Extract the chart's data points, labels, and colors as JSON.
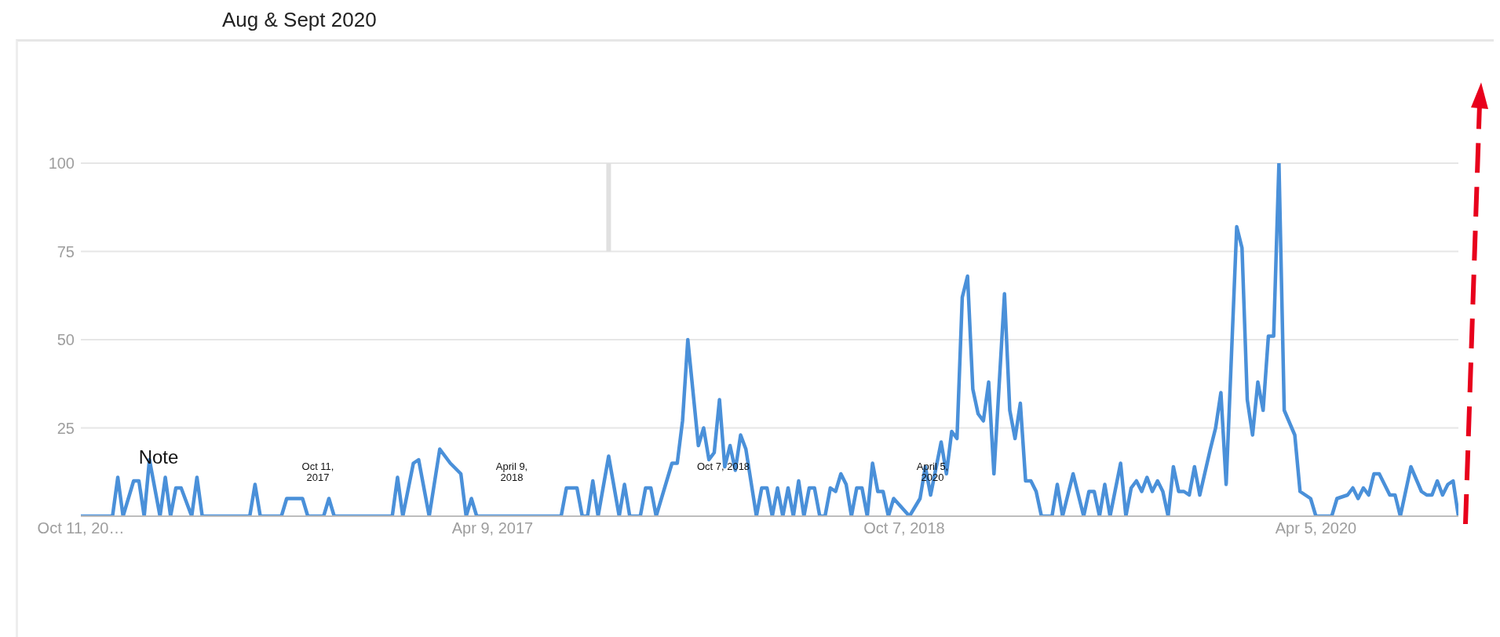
{
  "chart_data": {
    "type": "line",
    "title": "Aug & Sept 2020",
    "x": [
      "2015-10-11",
      "2015-11-22",
      "2015-11-29",
      "2015-12-06",
      "2015-12-20",
      "2015-12-27",
      "2016-01-03",
      "2016-01-10",
      "2016-01-24",
      "2016-01-31",
      "2016-02-07",
      "2016-02-14",
      "2016-02-21",
      "2016-03-06",
      "2016-03-13",
      "2016-03-20",
      "2016-05-22",
      "2016-05-29",
      "2016-06-05",
      "2016-07-03",
      "2016-07-10",
      "2016-07-31",
      "2016-08-07",
      "2016-08-28",
      "2016-09-04",
      "2016-09-11",
      "2016-11-27",
      "2016-12-04",
      "2016-12-11",
      "2016-12-25",
      "2017-01-01",
      "2017-01-15",
      "2017-01-29",
      "2017-02-12",
      "2017-02-26",
      "2017-03-05",
      "2017-03-12",
      "2017-03-19",
      "2017-07-09",
      "2017-07-16",
      "2017-07-30",
      "2017-08-06",
      "2017-08-13",
      "2017-08-20",
      "2017-08-27",
      "2017-09-10",
      "2017-09-24",
      "2017-10-01",
      "2017-10-08",
      "2017-10-22",
      "2017-10-29",
      "2017-11-05",
      "2017-11-12",
      "2017-12-03",
      "2017-12-10",
      "2017-12-17",
      "2017-12-24",
      "2017-12-31",
      "2018-01-07",
      "2018-01-14",
      "2018-01-21",
      "2018-01-28",
      "2018-02-04",
      "2018-02-11",
      "2018-02-18",
      "2018-02-25",
      "2018-03-04",
      "2018-03-11",
      "2018-03-25",
      "2018-04-01",
      "2018-04-08",
      "2018-04-15",
      "2018-04-22",
      "2018-04-29",
      "2018-05-06",
      "2018-05-13",
      "2018-05-20",
      "2018-05-27",
      "2018-06-03",
      "2018-06-10",
      "2018-06-17",
      "2018-06-24",
      "2018-07-01",
      "2018-07-08",
      "2018-07-15",
      "2018-07-22",
      "2018-07-29",
      "2018-08-05",
      "2018-08-12",
      "2018-08-19",
      "2018-08-26",
      "2018-09-02",
      "2018-09-09",
      "2018-09-16",
      "2018-09-23",
      "2018-10-14",
      "2018-10-28",
      "2018-11-04",
      "2018-11-11",
      "2018-11-25",
      "2018-12-02",
      "2018-12-09",
      "2018-12-16",
      "2018-12-23",
      "2018-12-30",
      "2019-01-06",
      "2019-01-13",
      "2019-01-20",
      "2019-01-27",
      "2019-02-03",
      "2019-02-17",
      "2019-02-24",
      "2019-03-03",
      "2019-03-10",
      "2019-03-17",
      "2019-03-24",
      "2019-03-31",
      "2019-04-07",
      "2019-04-21",
      "2019-04-28",
      "2019-05-05",
      "2019-05-19",
      "2019-06-02",
      "2019-06-09",
      "2019-06-16",
      "2019-06-23",
      "2019-06-30",
      "2019-07-07",
      "2019-07-21",
      "2019-07-28",
      "2019-08-04",
      "2019-08-11",
      "2019-08-18",
      "2019-08-25",
      "2019-09-01",
      "2019-09-08",
      "2019-09-15",
      "2019-09-22",
      "2019-09-29",
      "2019-10-06",
      "2019-10-13",
      "2019-10-20",
      "2019-10-27",
      "2019-11-03",
      "2019-11-17",
      "2019-11-24",
      "2019-12-01",
      "2019-12-08",
      "2019-12-22",
      "2019-12-29",
      "2020-01-05",
      "2020-01-12",
      "2020-01-19",
      "2020-01-26",
      "2020-02-02",
      "2020-02-09",
      "2020-02-16",
      "2020-02-23",
      "2020-03-08",
      "2020-03-15",
      "2020-03-29",
      "2020-04-05",
      "2020-04-26",
      "2020-05-03",
      "2020-05-17",
      "2020-05-24",
      "2020-05-31",
      "2020-06-07",
      "2020-06-14",
      "2020-06-21",
      "2020-06-28",
      "2020-07-12",
      "2020-07-19",
      "2020-07-26",
      "2020-08-09",
      "2020-08-23",
      "2020-08-30",
      "2020-09-06",
      "2020-09-13",
      "2020-09-20",
      "2020-09-27",
      "2020-10-04",
      "2020-10-11"
    ],
    "series": [
      {
        "color": "#4a90d9",
        "values": [
          0,
          0,
          11,
          0,
          10,
          10,
          0,
          16,
          0,
          11,
          0,
          8,
          8,
          0,
          11,
          0,
          0,
          9,
          0,
          0,
          5,
          5,
          0,
          0,
          5,
          0,
          0,
          11,
          0,
          15,
          16,
          0,
          19,
          15,
          12,
          0,
          5,
          0,
          0,
          8,
          8,
          0,
          0,
          10,
          0,
          17,
          0,
          9,
          0,
          0,
          8,
          8,
          0,
          15,
          15,
          27,
          50,
          35,
          20,
          25,
          16,
          18,
          33,
          14,
          20,
          13,
          23,
          19,
          0,
          8,
          8,
          0,
          8,
          0,
          8,
          0,
          10,
          0,
          8,
          8,
          0,
          0,
          8,
          7,
          12,
          9,
          0,
          8,
          8,
          0,
          15,
          7,
          7,
          0,
          5,
          0,
          5,
          14,
          6,
          21,
          12,
          24,
          22,
          62,
          68,
          36,
          29,
          27,
          38,
          12,
          63,
          30,
          22,
          32,
          10,
          10,
          7,
          0,
          0,
          9,
          0,
          12,
          0,
          7,
          7,
          0,
          9,
          0,
          15,
          0,
          8,
          10,
          7,
          11,
          7,
          10,
          7,
          0,
          14,
          7,
          7,
          6,
          14,
          6,
          19,
          25,
          35,
          9,
          82,
          76,
          33,
          23,
          38,
          30,
          51,
          51,
          100,
          30,
          23,
          7,
          5,
          0,
          0,
          5,
          6,
          8,
          5,
          8,
          6,
          12,
          12,
          6,
          6,
          0,
          14,
          7,
          6,
          6,
          10,
          6,
          9,
          10,
          0
        ]
      }
    ],
    "xlim": [
      "2015-10-11",
      "2020-10-11"
    ],
    "xticks": [
      {
        "value": "2015-10-11",
        "label": "Oct 11, 20…"
      },
      {
        "value": "2017-04-09",
        "label": "Apr 9, 2017"
      },
      {
        "value": "2018-10-07",
        "label": "Oct 7, 2018"
      },
      {
        "value": "2020-04-05",
        "label": "Apr 5, 2020"
      }
    ],
    "ylim": [
      0,
      100
    ],
    "yticks": [
      25,
      50,
      75,
      100
    ],
    "grid": "y",
    "line_style": "solid",
    "ref_lines": [
      {
        "axis": "x",
        "value": "2017-09-10",
        "color": "#e0e0e0"
      }
    ],
    "annotations": [
      "Note",
      "Oct 11, 2017",
      "April 9, 2018",
      "Oct 7, 2018",
      "April 5, 2020"
    ]
  }
}
